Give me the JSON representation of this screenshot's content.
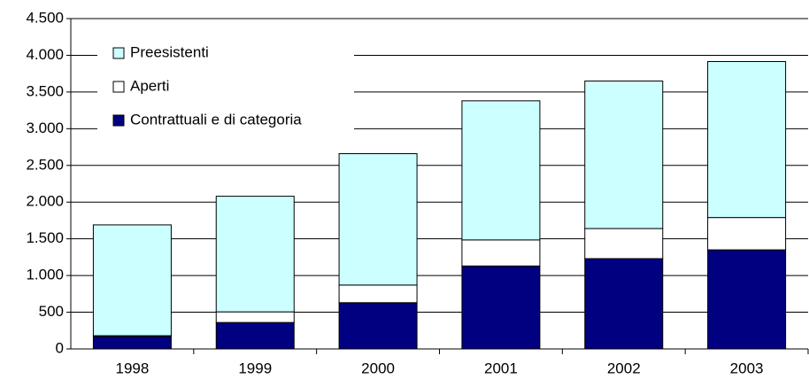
{
  "chart_data": {
    "type": "stacked_bar",
    "categories": [
      "1998",
      "1999",
      "2000",
      "2001",
      "2002",
      "2003"
    ],
    "series": [
      {
        "name": "Contrattuali e di categoria",
        "color": "#000080",
        "values": [
          170,
          360,
          630,
          1130,
          1230,
          1350
        ]
      },
      {
        "name": "Aperti",
        "color": "#ffffff",
        "values": [
          10,
          145,
          240,
          355,
          410,
          440
        ]
      },
      {
        "name": "Preesistenti",
        "color": "#ccffff",
        "values": [
          1510,
          1575,
          1790,
          1895,
          2010,
          2125
        ]
      }
    ],
    "ylim": [
      0,
      4500
    ],
    "yticks": [
      0,
      500,
      {
        "value": 1000,
        "label": "1.000"
      },
      {
        "value": 1500,
        "label": "1.500"
      },
      {
        "value": 2000,
        "label": "2.000"
      },
      {
        "value": 2500,
        "label": "2.500"
      },
      {
        "value": 3000,
        "label": "3.000"
      },
      {
        "value": 3500,
        "label": "3.500"
      },
      {
        "value": 4000,
        "label": "4.000"
      },
      {
        "value": 4500,
        "label": "4.500"
      }
    ],
    "grid": true,
    "legend": "top-left"
  }
}
